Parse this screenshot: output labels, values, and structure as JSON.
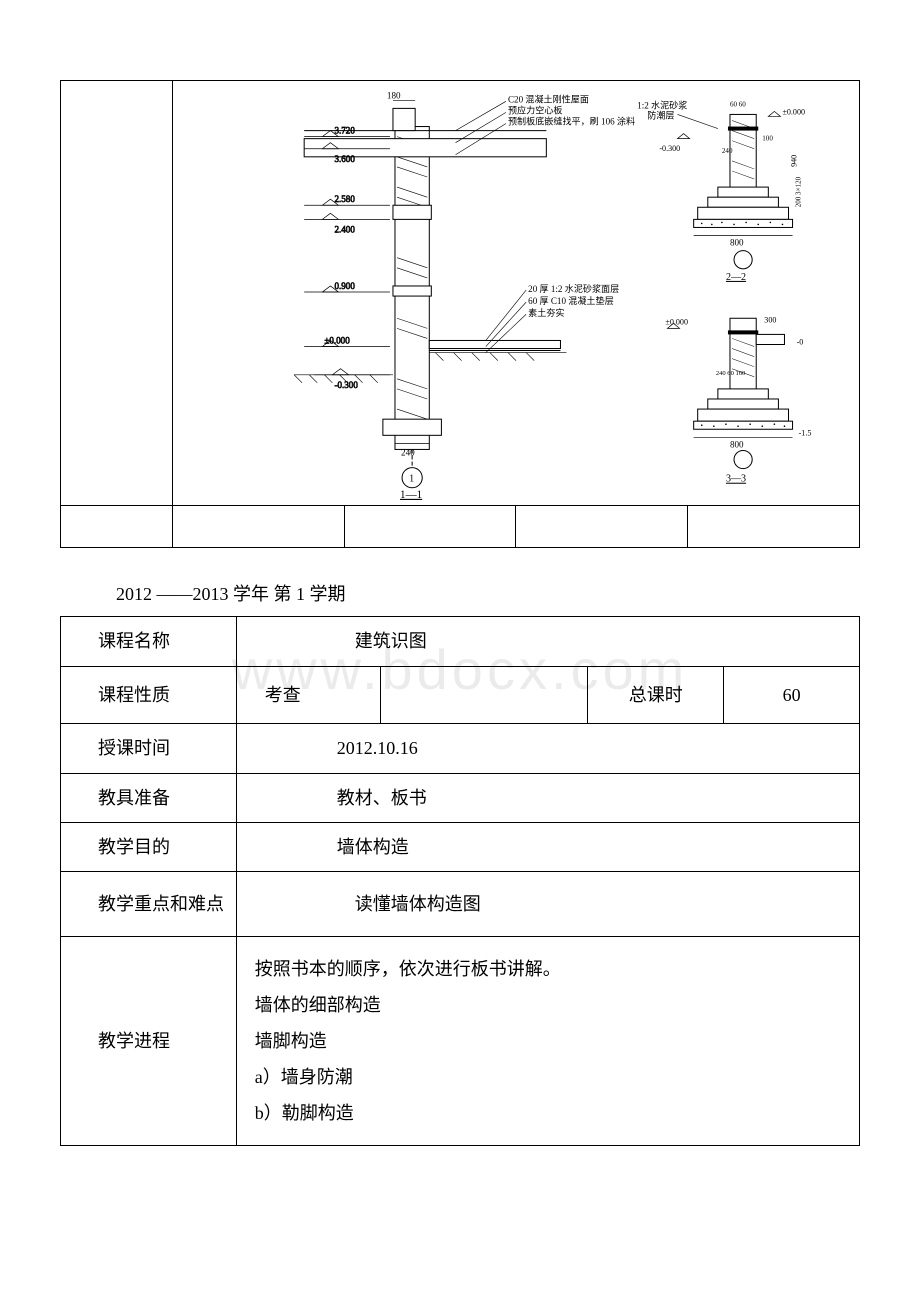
{
  "watermark": "www.bdocx.com",
  "diagram": {
    "labels": {
      "top_concrete": "C20 混凝土刚性屋面",
      "top_slab": "预应力空心板",
      "top_precast": "预制板底嵌缝找平，刷 106 涂料",
      "dim_180": "180",
      "elev_3720": "3.720",
      "elev_3600": "3.600",
      "elev_2580": "2.580",
      "elev_2400": "2.400",
      "elev_0900": "0.900",
      "mortar_20": "20 厚 1:2 水泥砂浆面层",
      "bed_60": "60 厚 C10 混凝土垫层",
      "compact_soil": "素土夯实",
      "pm_0000": "±0.000",
      "neg_0300": "-0.300",
      "dim_240": "240",
      "circle_1": "1",
      "section_1_1": "1—1",
      "damp_proof": "1:2 水泥砂浆\n防潮层",
      "pm_0000_r": "±0.000",
      "neg_0300_r": "-0.300",
      "dims_60_60": "60  60",
      "dim_240_r": "240",
      "dim_100": "100",
      "dim_940": "940",
      "dim_200_3_120": "200 3×120",
      "dim_800_a": "800",
      "section_2_2": "2—2",
      "pm_0000_r2": "±0.000",
      "dim_300": "300",
      "neg_0_r2": "-0",
      "dims_240_60_160": "240 60 160",
      "dim_800_b": "800",
      "neg_1_5": "-1.5",
      "section_3_3": "3—3"
    },
    "colors": {
      "stroke": "#000000",
      "hatch": "#000000",
      "fill": "#ffffff",
      "ground": "#000000"
    }
  },
  "semester": "2012 ——2013 学年 第 1 学期",
  "info": {
    "course_name_label": "课程名称",
    "course_name": "建筑识图",
    "course_type_label": "课程性质",
    "course_type": "考查",
    "total_hours_label": "总课时",
    "total_hours": "60",
    "teach_time_label": "授课时间",
    "teach_time": "2012.10.16",
    "tools_label": "教具准备",
    "tools": "教材、板书",
    "purpose_label": "教学目的",
    "purpose": "墙体构造",
    "focus_label": "教学重点和难点",
    "focus": "读懂墙体构造图",
    "process_label": "教学进程",
    "process_lines": [
      "按照书本的顺序，依次进行板书讲解。",
      "墙体的细部构造",
      "墙脚构造",
      "a）墙身防潮",
      "b）勒脚构造"
    ]
  }
}
